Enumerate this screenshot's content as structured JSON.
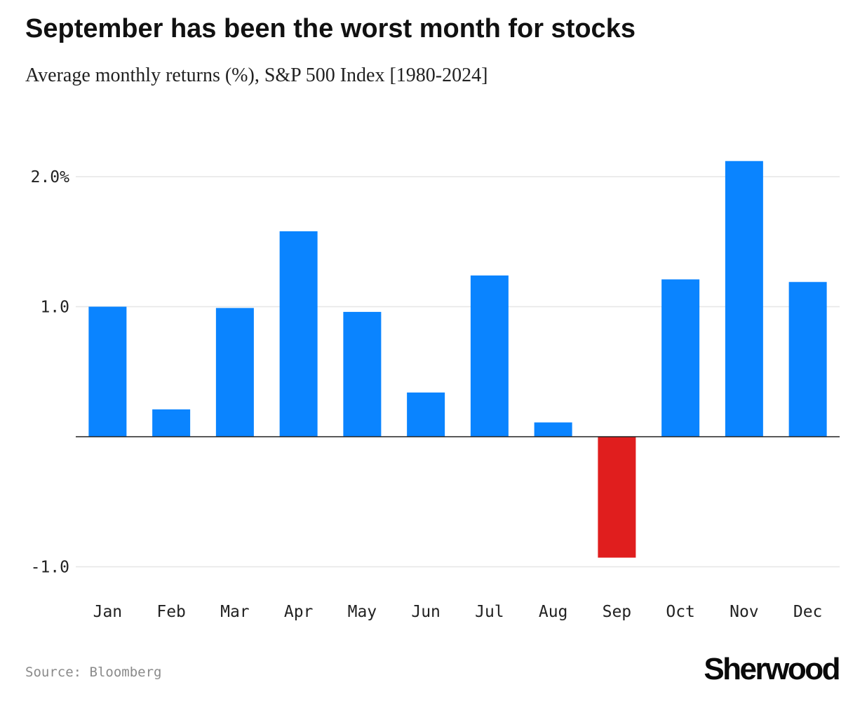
{
  "title": "September has been the worst month for stocks",
  "subtitle": "Average monthly returns (%), S&P 500 Index [1980-2024]",
  "source": "Source: Bloomberg",
  "brand": "Sherwood",
  "colors": {
    "positive": "#0a84ff",
    "negative": "#e01e1e",
    "gridline": "#e6e6e6",
    "axis": "#222222"
  },
  "chart_data": {
    "type": "bar",
    "categories": [
      "Jan",
      "Feb",
      "Mar",
      "Apr",
      "May",
      "Jun",
      "Jul",
      "Aug",
      "Sep",
      "Oct",
      "Nov",
      "Dec"
    ],
    "values": [
      1.0,
      0.21,
      0.99,
      1.58,
      0.96,
      0.34,
      1.24,
      0.11,
      -0.93,
      1.21,
      2.12,
      1.19
    ],
    "title": "September has been the worst month for stocks",
    "subtitle": "Average monthly returns (%), S&P 500 Index [1980-2024]",
    "xlabel": "",
    "ylabel": "",
    "ylim": [
      -1.0,
      2.0
    ],
    "yticks": [
      {
        "value": 2.0,
        "label": "2.0%"
      },
      {
        "value": 1.0,
        "label": "1.0"
      },
      {
        "value": -1.0,
        "label": "-1.0"
      }
    ],
    "grid": true,
    "legend": "none"
  }
}
